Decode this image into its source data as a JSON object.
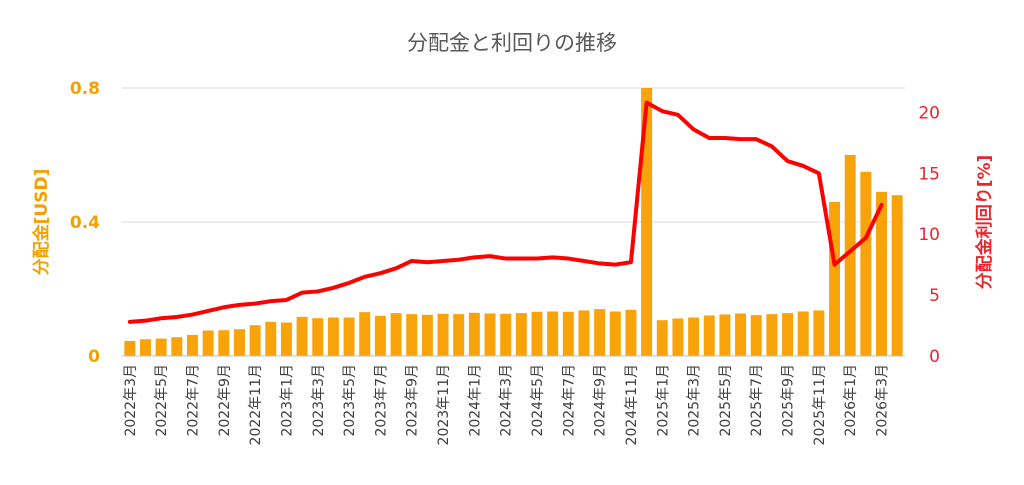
{
  "chart_data": {
    "type": "bar+line",
    "title": "分配金と利回りの推移",
    "categories": [
      "2022年3月",
      "2022年4月",
      "2022年5月",
      "2022年6月",
      "2022年7月",
      "2022年8月",
      "2022年9月",
      "2022年10月",
      "2022年11月",
      "2022年12月",
      "2023年1月",
      "2023年2月",
      "2023年3月",
      "2023年4月",
      "2023年5月",
      "2023年6月",
      "2023年7月",
      "2023年8月",
      "2023年9月",
      "2023年10月",
      "2023年11月",
      "2023年12月",
      "2024年1月",
      "2024年2月",
      "2024年3月",
      "2024年4月",
      "2024年5月",
      "2024年6月",
      "2024年7月",
      "2024年8月",
      "2024年9月",
      "2024年10月",
      "2024年11月",
      "2024年12月",
      "2025年1月",
      "2025年2月",
      "2025年3月",
      "2025年4月",
      "2025年5月",
      "2025年6月",
      "2025年7月",
      "2025年8月",
      "2025年9月",
      "2025年10月",
      "2025年11月",
      "2025年12月",
      "2026年1月",
      "2026年2月",
      "2026年3月",
      "2026年4月"
    ],
    "shown_tick_labels": [
      "2022年3月",
      "2022年5月",
      "2022年7月",
      "2022年9月",
      "2022年11月",
      "2023年1月",
      "2023年3月",
      "2023年5月",
      "2023年7月",
      "2023年9月",
      "2023年11月",
      "2024年1月",
      "2024年3月",
      "2024年5月",
      "2024年7月",
      "2024年9月",
      "2024年11月",
      "2025年1月",
      "2025年3月",
      "2025年5月",
      "2025年7月",
      "2025年9月",
      "2025年11月",
      "2026年1月",
      "2026年3月"
    ],
    "series": [
      {
        "name": "",
        "type": "bar",
        "axis": "left",
        "color": "#f9a30b",
        "values": [
          0.045,
          0.05,
          0.052,
          0.056,
          0.063,
          0.076,
          0.077,
          0.08,
          0.092,
          0.102,
          0.1,
          0.117,
          0.113,
          0.115,
          0.115,
          0.131,
          0.12,
          0.128,
          0.125,
          0.123,
          0.126,
          0.125,
          0.129,
          0.127,
          0.126,
          0.128,
          0.132,
          0.133,
          0.132,
          0.136,
          0.14,
          0.133,
          0.138,
          0.8,
          0.107,
          0.112,
          0.115,
          0.121,
          0.124,
          0.127,
          0.122,
          0.125,
          0.128,
          0.133,
          0.136,
          0.46,
          0.6,
          0.55,
          0.49,
          0.48
        ]
      },
      {
        "name": "",
        "type": "line",
        "axis": "right",
        "color": "#ff0000",
        "values": [
          2.8,
          2.9,
          3.1,
          3.2,
          3.4,
          3.7,
          4.0,
          4.2,
          4.3,
          4.5,
          4.6,
          5.2,
          5.3,
          5.6,
          6.0,
          6.5,
          6.8,
          7.2,
          7.8,
          7.7,
          7.8,
          7.9,
          8.1,
          8.2,
          8.0,
          8.0,
          8.0,
          8.1,
          8.0,
          7.8,
          7.6,
          7.5,
          7.7,
          20.8,
          20.1,
          19.8,
          18.6,
          17.9,
          17.9,
          17.8,
          17.8,
          17.2,
          16.0,
          15.6,
          15.0,
          7.5,
          8.6,
          9.7,
          12.4,
          null
        ]
      }
    ],
    "y_left": {
      "label": "分配金[USD]",
      "ylim": [
        0,
        0.8
      ],
      "ticks": [
        "0",
        "0.4",
        "0.8"
      ],
      "tick_values": [
        0,
        0.4,
        0.8
      ]
    },
    "y_right": {
      "label": "分配金利回り[%]",
      "ylim": [
        0,
        22
      ],
      "ticks": [
        "0",
        "5",
        "10",
        "15",
        "20"
      ],
      "tick_values": [
        0,
        5,
        10,
        15,
        20
      ]
    },
    "grid": true,
    "legend": "none"
  }
}
